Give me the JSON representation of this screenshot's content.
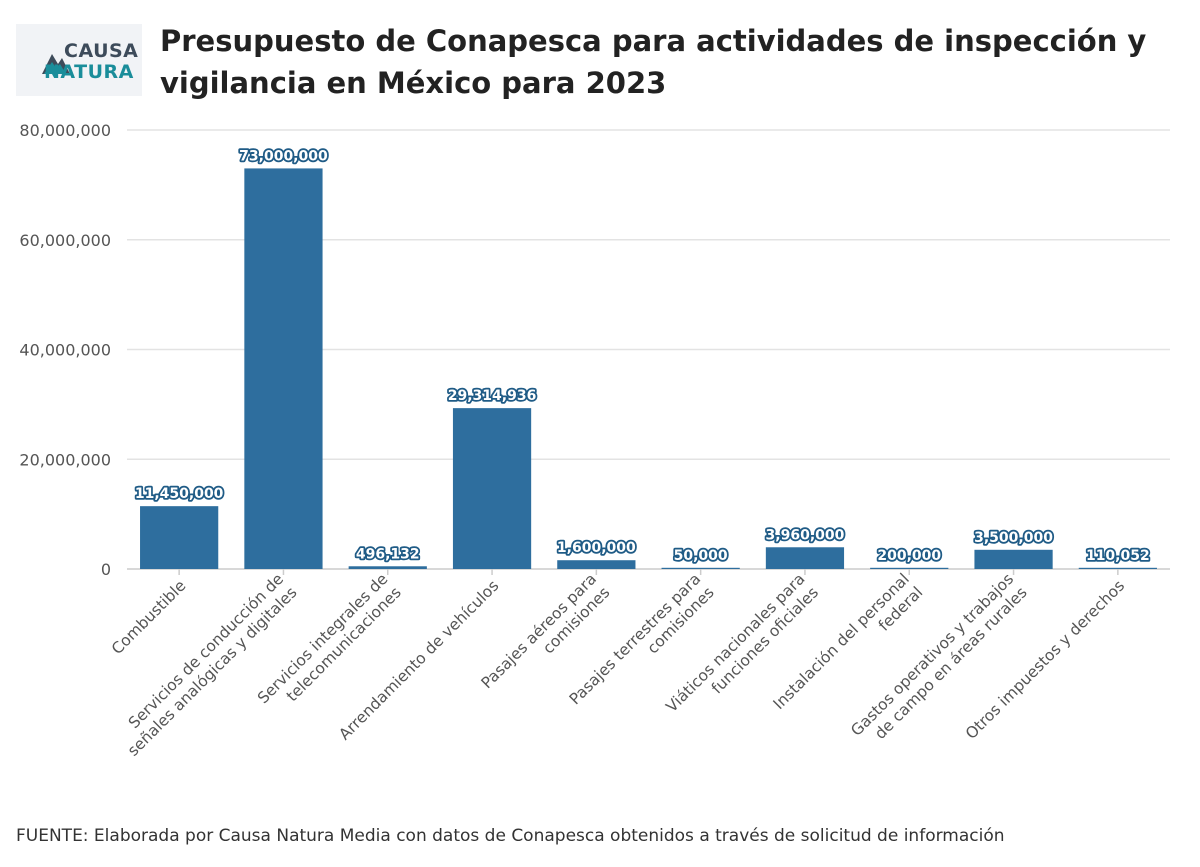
{
  "logo": {
    "line1": "CAUSA",
    "line2": "NATURA"
  },
  "source": "FUENTE: Elaborada por Causa Natura Media con datos de Conapesca obtenidos a través de solicitud de información",
  "colors": {
    "bar": "#2e6e9e",
    "grid": "#e3e3e3",
    "axis": "#cccccc",
    "label_outline": "#1f5b86"
  },
  "chart_data": {
    "type": "bar",
    "title": "Presupuesto de Conapesca para actividades de inspección y vigilancia en México para 2023",
    "xlabel": "",
    "ylabel": "",
    "ylim": [
      0,
      80000000
    ],
    "yticks": [
      0,
      20000000,
      40000000,
      60000000,
      80000000
    ],
    "ytick_labels": [
      "0",
      "20,000,000",
      "40,000,000",
      "60,000,000",
      "80,000,000"
    ],
    "grid": true,
    "legend": "none",
    "categories": [
      [
        "Combustible"
      ],
      [
        "Servicios de conducción de",
        "señales analógicas y digitales"
      ],
      [
        "Servicios integrales de",
        "telecomunicaciones"
      ],
      [
        "Arrendamiento de vehículos"
      ],
      [
        "Pasajes aéreos para",
        "comisiones"
      ],
      [
        "Pasajes terrestres para",
        "comisiones"
      ],
      [
        "Viáticos nacionales para",
        "funciones oficiales"
      ],
      [
        "Instalación del personal",
        "federal"
      ],
      [
        "Gastos operativos y trabajos",
        "de campo en áreas rurales"
      ],
      [
        "Otros impuestos y derechos"
      ]
    ],
    "values": [
      11450000,
      73000000,
      496132,
      29314936,
      1600000,
      50000,
      3960000,
      200000,
      3500000,
      110052
    ],
    "value_labels": [
      "11,450,000",
      "73,000,000",
      "496,132",
      "29,314,936",
      "1,600,000",
      "50,000",
      "3,960,000",
      "200,000",
      "3,500,000",
      "110,052"
    ]
  }
}
